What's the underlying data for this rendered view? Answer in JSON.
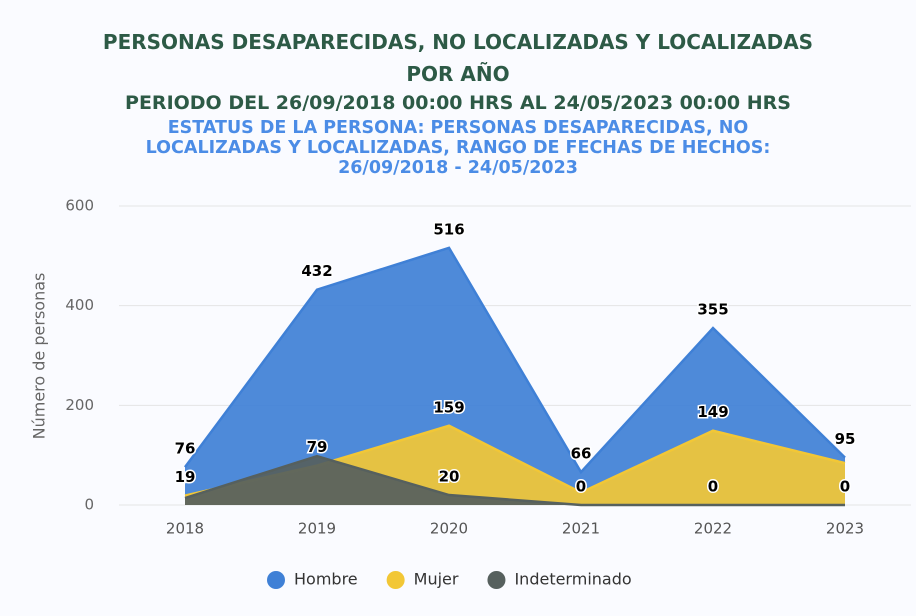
{
  "chart_data": {
    "type": "area",
    "title": "PERSONAS DESAPARECIDAS, NO LOCALIZADAS Y LOCALIZADAS POR AÑO",
    "period": "PERIODO DEL 26/09/2018 00:00 HRS AL 24/05/2023 00:00 HRS",
    "subtitle": "ESTATUS DE LA PERSONA: PERSONAS DESAPARECIDAS, NO LOCALIZADAS Y LOCALIZADAS, RANGO DE FECHAS DE HECHOS: 26/09/2018 - 24/05/2023",
    "y_label": "Número de personas",
    "categories": [
      "2018",
      "2019",
      "2020",
      "2021",
      "2022",
      "2023"
    ],
    "series": [
      {
        "name": "Hombre",
        "color": "#3f80d6",
        "values": [
          76,
          432,
          516,
          66,
          355,
          95
        ],
        "value_labels": [
          "76",
          "432",
          "516",
          "66",
          "355",
          "95"
        ]
      },
      {
        "name": "Mujer",
        "color": "#f2c736",
        "values": [
          19,
          79,
          159,
          25,
          149,
          84
        ],
        "value_labels": [
          "19",
          "79",
          "159",
          null,
          "149",
          null
        ]
      },
      {
        "name": "Indeterminado",
        "color": "#56605e",
        "values": [
          14,
          98,
          20,
          0,
          0,
          0
        ],
        "value_labels": [
          null,
          null,
          "20",
          "0",
          "0",
          "0"
        ]
      }
    ],
    "ylim": [
      0,
      600
    ],
    "yticks": [
      0,
      200,
      400,
      600
    ],
    "grid": true
  }
}
